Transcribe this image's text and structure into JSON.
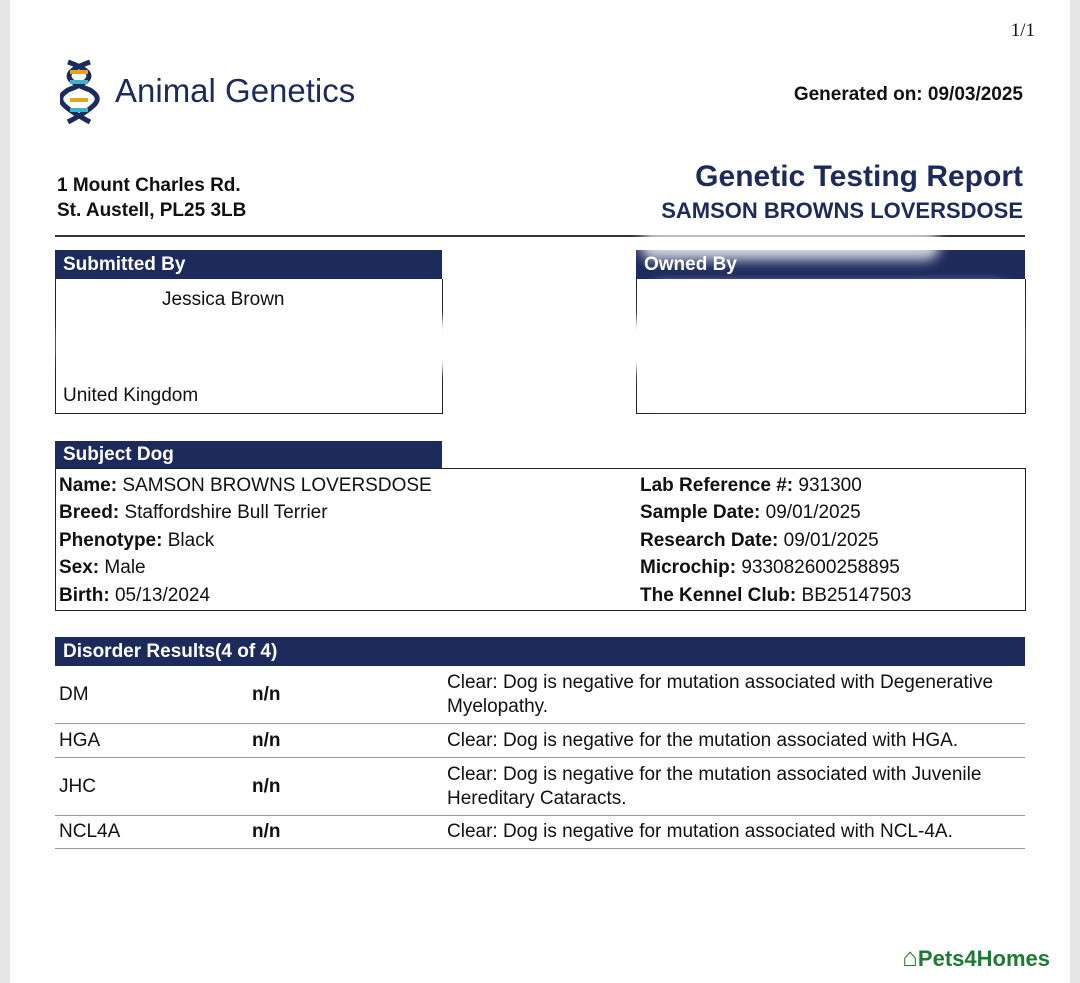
{
  "page_number": "1/1",
  "logo": {
    "name": "Animal Genetics"
  },
  "generated": "Generated on: 09/03/2025",
  "address": [
    "1 Mount Charles Rd.",
    "St. Austell, PL25 3LB"
  ],
  "report": {
    "title": "Genetic Testing Report",
    "subject": "SAMSON BROWNS LOVERSDOSE"
  },
  "submitted_by": {
    "title": "Submitted By",
    "lines": [
      "Jessica Brown",
      "United Kingdom"
    ]
  },
  "owned_by": {
    "title": "Owned By"
  },
  "subject_dog": {
    "title": "Subject Dog",
    "left": [
      {
        "label": "Name:",
        "value": "SAMSON BROWNS LOVERSDOSE"
      },
      {
        "label": "Breed:",
        "value": "Staffordshire Bull Terrier"
      },
      {
        "label": "Phenotype:",
        "value": "Black"
      },
      {
        "label": "Sex:",
        "value": "Male"
      },
      {
        "label": "Birth:",
        "value": "05/13/2024"
      }
    ],
    "right": [
      {
        "label": "Lab Reference #:",
        "value": "931300"
      },
      {
        "label": "Sample Date:",
        "value": "09/01/2025"
      },
      {
        "label": "Research Date:",
        "value": "09/01/2025"
      },
      {
        "label": "Microchip:",
        "value": "933082600258895"
      },
      {
        "label": "The Kennel Club:",
        "value": "BB25147503"
      }
    ]
  },
  "disorders": {
    "title": "Disorder Results(4 of 4)",
    "rows": [
      [
        "DM",
        "n/n",
        "Clear: Dog is negative for mutation associated with Degenerative Myelopathy."
      ],
      [
        "HGA",
        "n/n",
        "Clear: Dog is negative for the mutation associated with HGA."
      ],
      [
        "JHC",
        "n/n",
        "Clear: Dog is negative for the mutation associated with Juvenile Hereditary Cataracts."
      ],
      [
        "NCL4A",
        "n/n",
        "Clear: Dog is negative for mutation associated with NCL-4A."
      ]
    ]
  },
  "watermark": "Pets4Homes"
}
